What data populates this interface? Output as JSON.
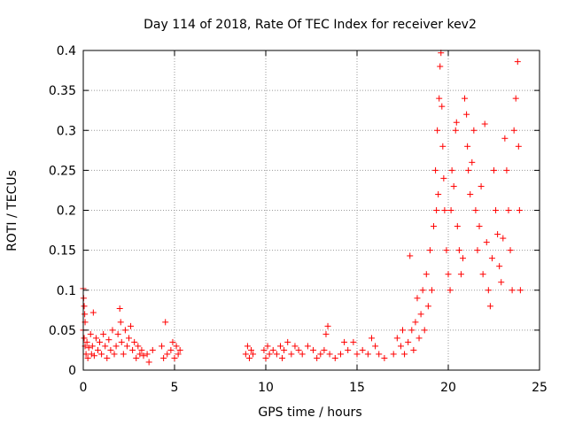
{
  "chart_data": {
    "type": "scatter",
    "title": "Day 114 of 2018, Rate Of TEC Index for receiver kev2",
    "xlabel": "GPS time / hours",
    "ylabel": "ROTI / TECUs",
    "xlim": [
      0,
      25
    ],
    "ylim": [
      0,
      0.4
    ],
    "xticks": [
      0,
      5,
      10,
      15,
      20,
      25
    ],
    "xtick_labels": [
      "0",
      "5",
      "10",
      "15",
      "20",
      "25"
    ],
    "yticks": [
      0,
      0.05,
      0.1,
      0.15,
      0.2,
      0.25,
      0.3,
      0.35,
      0.4
    ],
    "ytick_labels": [
      "0",
      "0.05",
      "0.1",
      "0.15",
      "0.2",
      "0.25",
      "0.3",
      "0.35",
      "0.4"
    ],
    "grid": true,
    "marker": "+",
    "marker_color": "#ff0000",
    "series": [
      {
        "name": "ROTI",
        "points": [
          [
            0.0,
            0.102
          ],
          [
            0.02,
            0.09
          ],
          [
            0.05,
            0.08
          ],
          [
            0.08,
            0.07
          ],
          [
            0.1,
            0.06
          ],
          [
            0.0,
            0.05
          ],
          [
            0.05,
            0.04
          ],
          [
            0.1,
            0.03
          ],
          [
            0.15,
            0.02
          ],
          [
            0.2,
            0.035
          ],
          [
            0.25,
            0.015
          ],
          [
            0.3,
            0.028
          ],
          [
            0.4,
            0.045
          ],
          [
            0.45,
            0.02
          ],
          [
            0.5,
            0.03
          ],
          [
            0.55,
            0.072
          ],
          [
            0.6,
            0.018
          ],
          [
            0.7,
            0.04
          ],
          [
            0.8,
            0.025
          ],
          [
            0.9,
            0.035
          ],
          [
            1.0,
            0.02
          ],
          [
            1.1,
            0.045
          ],
          [
            1.2,
            0.03
          ],
          [
            1.3,
            0.015
          ],
          [
            1.4,
            0.038
          ],
          [
            1.5,
            0.025
          ],
          [
            1.6,
            0.05
          ],
          [
            1.7,
            0.02
          ],
          [
            1.8,
            0.03
          ],
          [
            1.9,
            0.045
          ],
          [
            2.0,
            0.077
          ],
          [
            2.05,
            0.06
          ],
          [
            2.1,
            0.035
          ],
          [
            2.2,
            0.02
          ],
          [
            2.3,
            0.05
          ],
          [
            2.4,
            0.03
          ],
          [
            2.5,
            0.04
          ],
          [
            2.6,
            0.055
          ],
          [
            2.7,
            0.025
          ],
          [
            2.8,
            0.035
          ],
          [
            2.9,
            0.015
          ],
          [
            3.0,
            0.03
          ],
          [
            3.1,
            0.02
          ],
          [
            3.2,
            0.025
          ],
          [
            3.3,
            0.018
          ],
          [
            3.5,
            0.02
          ],
          [
            3.6,
            0.01
          ],
          [
            3.8,
            0.025
          ],
          [
            4.3,
            0.03
          ],
          [
            4.4,
            0.015
          ],
          [
            4.5,
            0.06
          ],
          [
            4.6,
            0.02
          ],
          [
            4.8,
            0.025
          ],
          [
            4.9,
            0.035
          ],
          [
            5.0,
            0.015
          ],
          [
            5.1,
            0.03
          ],
          [
            5.2,
            0.02
          ],
          [
            5.3,
            0.025
          ],
          [
            8.9,
            0.02
          ],
          [
            9.0,
            0.03
          ],
          [
            9.1,
            0.015
          ],
          [
            9.2,
            0.025
          ],
          [
            9.3,
            0.02
          ],
          [
            9.9,
            0.025
          ],
          [
            10.0,
            0.015
          ],
          [
            10.1,
            0.03
          ],
          [
            10.2,
            0.02
          ],
          [
            10.4,
            0.025
          ],
          [
            10.6,
            0.02
          ],
          [
            10.8,
            0.03
          ],
          [
            10.9,
            0.015
          ],
          [
            11.0,
            0.025
          ],
          [
            11.2,
            0.035
          ],
          [
            11.4,
            0.02
          ],
          [
            11.6,
            0.03
          ],
          [
            11.8,
            0.025
          ],
          [
            12.0,
            0.02
          ],
          [
            12.3,
            0.03
          ],
          [
            12.6,
            0.025
          ],
          [
            12.8,
            0.015
          ],
          [
            13.0,
            0.02
          ],
          [
            13.2,
            0.025
          ],
          [
            13.3,
            0.045
          ],
          [
            13.4,
            0.055
          ],
          [
            13.5,
            0.02
          ],
          [
            13.8,
            0.015
          ],
          [
            14.1,
            0.02
          ],
          [
            14.3,
            0.035
          ],
          [
            14.5,
            0.025
          ],
          [
            14.8,
            0.035
          ],
          [
            15.0,
            0.02
          ],
          [
            15.3,
            0.025
          ],
          [
            15.6,
            0.02
          ],
          [
            15.8,
            0.04
          ],
          [
            16.0,
            0.03
          ],
          [
            16.2,
            0.02
          ],
          [
            16.5,
            0.015
          ],
          [
            17.0,
            0.02
          ],
          [
            17.2,
            0.04
          ],
          [
            17.4,
            0.03
          ],
          [
            17.5,
            0.05
          ],
          [
            17.6,
            0.02
          ],
          [
            17.8,
            0.035
          ],
          [
            17.9,
            0.143
          ],
          [
            18.0,
            0.05
          ],
          [
            18.1,
            0.025
          ],
          [
            18.2,
            0.06
          ],
          [
            18.3,
            0.09
          ],
          [
            18.4,
            0.04
          ],
          [
            18.5,
            0.07
          ],
          [
            18.6,
            0.1
          ],
          [
            18.7,
            0.05
          ],
          [
            18.8,
            0.12
          ],
          [
            18.9,
            0.08
          ],
          [
            19.0,
            0.15
          ],
          [
            19.1,
            0.1
          ],
          [
            19.2,
            0.18
          ],
          [
            19.3,
            0.25
          ],
          [
            19.35,
            0.2
          ],
          [
            19.4,
            0.3
          ],
          [
            19.45,
            0.22
          ],
          [
            19.5,
            0.34
          ],
          [
            19.55,
            0.38
          ],
          [
            19.6,
            0.397
          ],
          [
            19.65,
            0.33
          ],
          [
            19.7,
            0.28
          ],
          [
            19.75,
            0.24
          ],
          [
            19.8,
            0.2
          ],
          [
            19.9,
            0.15
          ],
          [
            20.0,
            0.12
          ],
          [
            20.1,
            0.1
          ],
          [
            20.15,
            0.2
          ],
          [
            20.2,
            0.25
          ],
          [
            20.3,
            0.23
          ],
          [
            20.4,
            0.3
          ],
          [
            20.45,
            0.31
          ],
          [
            20.5,
            0.18
          ],
          [
            20.6,
            0.15
          ],
          [
            20.7,
            0.12
          ],
          [
            20.8,
            0.14
          ],
          [
            20.9,
            0.34
          ],
          [
            21.0,
            0.32
          ],
          [
            21.05,
            0.28
          ],
          [
            21.1,
            0.25
          ],
          [
            21.2,
            0.22
          ],
          [
            21.3,
            0.26
          ],
          [
            21.4,
            0.3
          ],
          [
            21.5,
            0.2
          ],
          [
            21.6,
            0.15
          ],
          [
            21.7,
            0.18
          ],
          [
            21.8,
            0.23
          ],
          [
            21.9,
            0.12
          ],
          [
            22.0,
            0.308
          ],
          [
            22.1,
            0.16
          ],
          [
            22.2,
            0.1
          ],
          [
            22.3,
            0.08
          ],
          [
            22.4,
            0.14
          ],
          [
            22.5,
            0.25
          ],
          [
            22.6,
            0.2
          ],
          [
            22.7,
            0.17
          ],
          [
            22.8,
            0.13
          ],
          [
            22.9,
            0.11
          ],
          [
            23.0,
            0.165
          ],
          [
            23.1,
            0.29
          ],
          [
            23.2,
            0.25
          ],
          [
            23.3,
            0.2
          ],
          [
            23.4,
            0.15
          ],
          [
            23.5,
            0.1
          ],
          [
            23.6,
            0.3
          ],
          [
            23.7,
            0.34
          ],
          [
            23.8,
            0.386
          ],
          [
            23.85,
            0.28
          ],
          [
            23.9,
            0.2
          ],
          [
            23.95,
            0.1
          ]
        ]
      }
    ]
  }
}
